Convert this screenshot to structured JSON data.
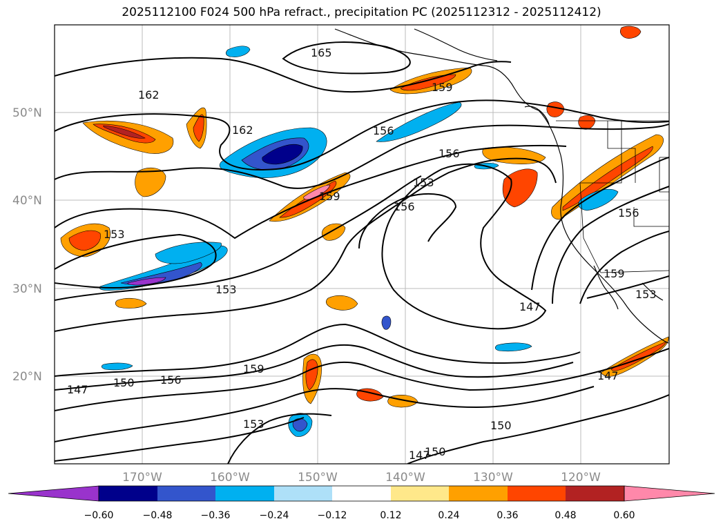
{
  "title": "2025112100 F024 500 hPa refract., precipitation PC (2025112312 - 2025112412)",
  "map": {
    "lat_ticks": [
      "50°N",
      "40°N",
      "30°N",
      "20°N"
    ],
    "lon_ticks": [
      "170°W",
      "160°W",
      "150°W",
      "140°W",
      "130°W",
      "120°W"
    ],
    "contour_labels": [
      "165",
      "162",
      "162",
      "159",
      "156",
      "156",
      "153",
      "159",
      "156",
      "153",
      "153",
      "156",
      "159",
      "153",
      "147",
      "147",
      "150",
      "156",
      "159",
      "153",
      "150",
      "147",
      "150",
      "147"
    ]
  },
  "colorbar": {
    "ticks": [
      "−0.60",
      "−0.48",
      "−0.36",
      "−0.24",
      "−0.12",
      "0.12",
      "0.24",
      "0.36",
      "0.48",
      "0.60"
    ],
    "colors": [
      "#9933cc",
      "#00008b",
      "#3355cc",
      "#00b0f0",
      "#aee0f8",
      "#ffffff",
      "#ffe88a",
      "#ffa000",
      "#ff4500",
      "#b22222",
      "#ff88aa"
    ]
  }
}
